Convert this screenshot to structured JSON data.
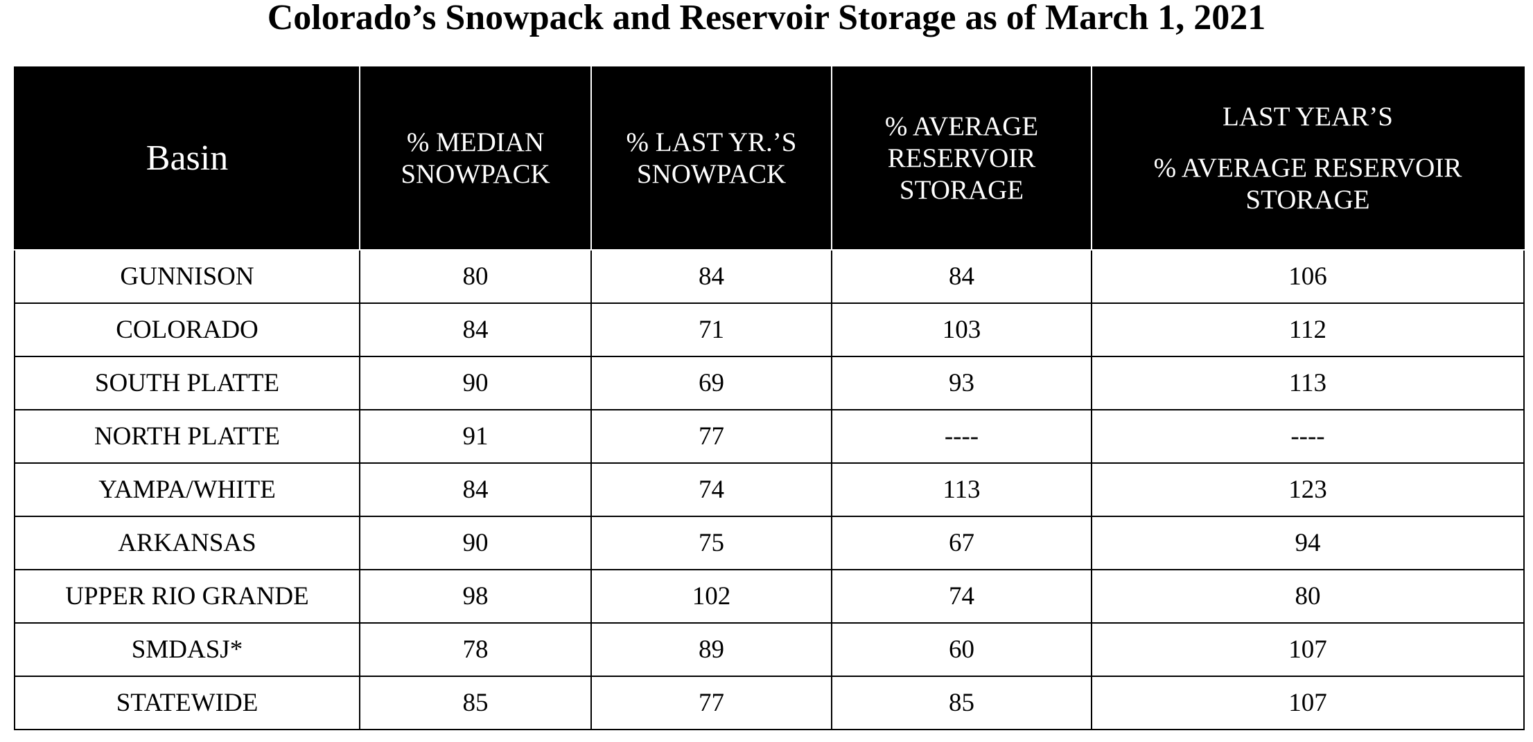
{
  "title": "Colorado’s Snowpack and Reservoir Storage as of March 1, 2021",
  "table": {
    "headers": [
      {
        "lines": [
          "Basin"
        ]
      },
      {
        "lines": [
          "% MEDIAN",
          "SNOWPACK"
        ]
      },
      {
        "lines": [
          "% LAST YR.’S",
          "SNOWPACK"
        ]
      },
      {
        "lines": [
          "% AVERAGE",
          "RESERVOIR",
          "STORAGE"
        ]
      },
      {
        "lines": [
          "LAST YEAR’S",
          "% AVERAGE RESERVOIR",
          "STORAGE"
        ]
      }
    ],
    "rows": [
      [
        "GUNNISON",
        "80",
        "84",
        "84",
        "106"
      ],
      [
        "COLORADO",
        "84",
        "71",
        "103",
        "112"
      ],
      [
        "SOUTH PLATTE",
        "90",
        "69",
        "93",
        "113"
      ],
      [
        "NORTH PLATTE",
        "91",
        "77",
        "----",
        "----"
      ],
      [
        "YAMPA/WHITE",
        "84",
        "74",
        "113",
        "123"
      ],
      [
        "ARKANSAS",
        "90",
        "75",
        "67",
        "94"
      ],
      [
        "UPPER RIO GRANDE",
        "98",
        "102",
        "74",
        "80"
      ],
      [
        "SMDASJ*",
        "78",
        "89",
        "60",
        "107"
      ],
      [
        "STATEWIDE",
        "85",
        "77",
        "85",
        "107"
      ]
    ]
  }
}
